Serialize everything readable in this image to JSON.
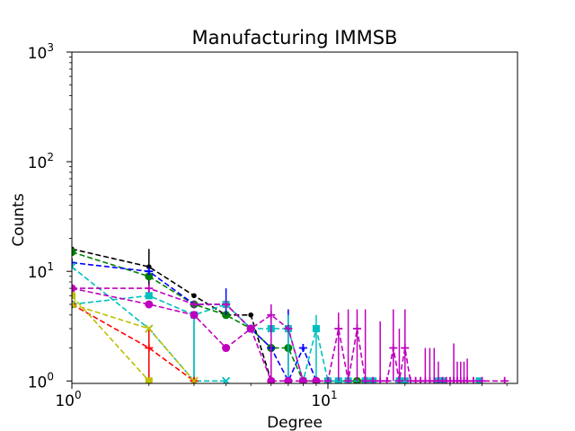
{
  "chart_data": {
    "type": "line",
    "title": "Manufacturing IMMSB",
    "xlabel": "Degree",
    "ylabel": "Counts",
    "x_scale": "log",
    "y_scale": "log",
    "xlim": [
      1,
      55
    ],
    "ylim": [
      0.95,
      1000
    ],
    "x_ticks": [
      {
        "value": 1,
        "base": "10",
        "exp": "0"
      },
      {
        "value": 10,
        "base": "10",
        "exp": "1"
      }
    ],
    "y_ticks": [
      {
        "value": 1,
        "base": "10",
        "exp": "0"
      },
      {
        "value": 10,
        "base": "10",
        "exp": "1"
      },
      {
        "value": 100,
        "base": "10",
        "exp": "2"
      },
      {
        "value": 1000,
        "base": "10",
        "exp": "3"
      }
    ],
    "grid": false,
    "legend": "none",
    "series": [
      {
        "color": "#000000",
        "marker": "dot",
        "points": [
          [
            1,
            16
          ],
          [
            2,
            11
          ],
          [
            3,
            6
          ],
          [
            4,
            4
          ],
          [
            5,
            4
          ],
          [
            6,
            1
          ]
        ],
        "errors": [
          [
            2,
            7,
            16
          ]
        ]
      },
      {
        "color": "#007f00",
        "marker": "circle",
        "points": [
          [
            1,
            15
          ],
          [
            2,
            9
          ],
          [
            3,
            5
          ],
          [
            4,
            4
          ],
          [
            5,
            3
          ],
          [
            6,
            2
          ],
          [
            7,
            2
          ],
          [
            8,
            1
          ],
          [
            9,
            1
          ],
          [
            10,
            1
          ],
          [
            13,
            1
          ],
          [
            14,
            1
          ]
        ]
      },
      {
        "color": "#0000ff",
        "marker": "plus",
        "points": [
          [
            1,
            12
          ],
          [
            2,
            10
          ],
          [
            3,
            5
          ],
          [
            4,
            5
          ],
          [
            5,
            3
          ],
          [
            6,
            2
          ],
          [
            7,
            1
          ],
          [
            8,
            2
          ],
          [
            9,
            1
          ]
        ],
        "errors": [
          [
            4,
            4,
            7
          ],
          [
            7,
            1,
            4.5
          ]
        ]
      },
      {
        "color": "#00bfbf",
        "marker": "x",
        "points": [
          [
            1,
            11
          ],
          [
            2,
            3
          ],
          [
            3,
            1
          ],
          [
            4,
            1
          ]
        ],
        "errors": [
          [
            2,
            1,
            3
          ],
          [
            3,
            1,
            4
          ]
        ]
      },
      {
        "color": "#00bfbf",
        "marker": "square",
        "points": [
          [
            1,
            5
          ],
          [
            2,
            6
          ],
          [
            3,
            4
          ],
          [
            4,
            5
          ],
          [
            5,
            3
          ],
          [
            6,
            3
          ],
          [
            7,
            3
          ],
          [
            8,
            1
          ],
          [
            9,
            3
          ],
          [
            10,
            1
          ],
          [
            11,
            1
          ],
          [
            12,
            1
          ],
          [
            14,
            1
          ],
          [
            15,
            1
          ],
          [
            19,
            1
          ],
          [
            20,
            1
          ],
          [
            27,
            1
          ],
          [
            28,
            1
          ],
          [
            39,
            1
          ]
        ],
        "errors": [
          [
            3,
            1,
            4
          ],
          [
            6,
            1,
            4
          ],
          [
            7,
            1,
            4
          ],
          [
            9,
            1,
            4
          ]
        ]
      },
      {
        "color": "#bf00bf",
        "marker": "circle",
        "points": [
          [
            1,
            7
          ],
          [
            2,
            5
          ],
          [
            3,
            4
          ],
          [
            4,
            2
          ],
          [
            5,
            3
          ],
          [
            6,
            1
          ],
          [
            7,
            1
          ],
          [
            8,
            1
          ],
          [
            9,
            1
          ]
        ]
      },
      {
        "color": "#bf00bf",
        "marker": "plus",
        "points": [
          [
            1,
            7
          ],
          [
            2,
            7
          ],
          [
            3,
            5
          ],
          [
            4,
            5
          ],
          [
            5,
            3
          ],
          [
            6,
            4
          ],
          [
            7,
            3
          ],
          [
            8,
            1
          ],
          [
            9,
            1
          ],
          [
            10,
            1
          ],
          [
            11,
            3
          ],
          [
            12,
            1
          ],
          [
            13,
            3
          ],
          [
            14,
            1
          ],
          [
            15,
            1
          ],
          [
            16,
            1
          ],
          [
            17,
            1
          ],
          [
            18,
            2
          ],
          [
            19,
            1
          ],
          [
            20,
            2
          ],
          [
            21,
            1
          ],
          [
            22,
            1
          ],
          [
            23,
            1
          ],
          [
            24,
            1
          ],
          [
            25,
            1
          ],
          [
            26,
            1
          ],
          [
            27,
            1
          ],
          [
            28,
            1
          ],
          [
            29,
            1
          ],
          [
            30,
            1
          ],
          [
            31,
            1
          ],
          [
            32,
            1
          ],
          [
            33,
            1
          ],
          [
            34,
            1
          ],
          [
            35,
            1
          ],
          [
            37,
            1
          ],
          [
            40,
            1
          ],
          [
            49,
            1
          ]
        ],
        "errors": [
          [
            6,
            1,
            5
          ],
          [
            11,
            1,
            4.2
          ],
          [
            12,
            1,
            4.5
          ],
          [
            13,
            1,
            4.5
          ],
          [
            14,
            1,
            4.5
          ],
          [
            16,
            1,
            3.5
          ],
          [
            18,
            1,
            4.5
          ],
          [
            19,
            1,
            3
          ],
          [
            20,
            1,
            4.5
          ],
          [
            24,
            1,
            2
          ],
          [
            25,
            1,
            2
          ],
          [
            26,
            1,
            2
          ],
          [
            27,
            1,
            1.5
          ],
          [
            31,
            1,
            2.2
          ],
          [
            32,
            1,
            1.5
          ],
          [
            33,
            1,
            1.5
          ],
          [
            34,
            1,
            1.5
          ],
          [
            35,
            1,
            1.6
          ]
        ]
      },
      {
        "color": "#ff0000",
        "marker": "plus",
        "points": [
          [
            1,
            5
          ],
          [
            2,
            2
          ],
          [
            3,
            1
          ]
        ],
        "errors": [
          [
            2,
            1,
            3
          ]
        ]
      },
      {
        "color": "#bfbf00",
        "marker": "square",
        "points": [
          [
            1,
            6
          ],
          [
            2,
            1
          ]
        ]
      },
      {
        "color": "#bfbf00",
        "marker": "x",
        "points": [
          [
            1,
            5
          ],
          [
            2,
            3
          ],
          [
            3,
            1
          ]
        ]
      }
    ]
  }
}
